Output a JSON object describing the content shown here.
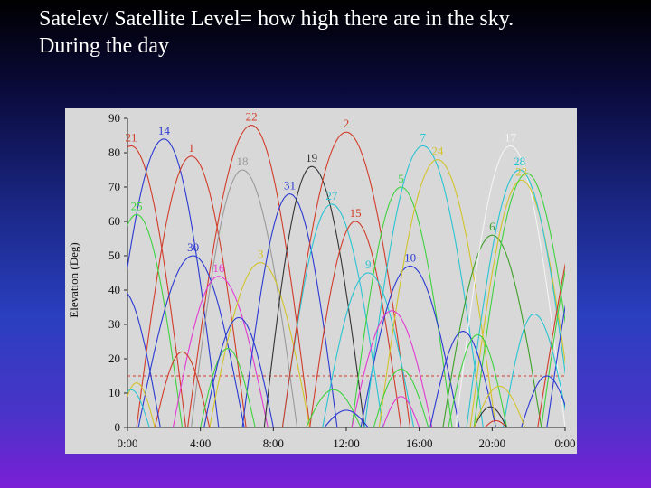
{
  "slide": {
    "title_line1": "Satelev/ Satellite Level= how high there are in the sky.",
    "title_line2": "During the day"
  },
  "chart_data": {
    "type": "line",
    "title": "",
    "xlabel": "",
    "ylabel": "Elevation (Deg)",
    "xlim": [
      0,
      24
    ],
    "ylim": [
      0,
      90
    ],
    "x_ticks": [
      "0:00",
      "4:00",
      "8:00",
      "12:00",
      "16:00",
      "20:00",
      "0:00"
    ],
    "x_tick_values": [
      0,
      4,
      8,
      12,
      16,
      20,
      24
    ],
    "y_ticks": [
      0,
      10,
      20,
      30,
      40,
      50,
      60,
      70,
      80,
      90
    ],
    "grid": false,
    "mask_line": {
      "y": 15,
      "color": "#d23c2a",
      "style": "dashed"
    },
    "x_units": "hours",
    "series": [
      {
        "name": "21",
        "color": "#d23c2a",
        "labeled": true,
        "peak_x": 0.2,
        "peak_y": 82,
        "start_x": -3,
        "end_x": 3.2
      },
      {
        "name": "14",
        "color": "#2a3ad2",
        "labeled": true,
        "peak_x": 2.0,
        "peak_y": 84,
        "start_x": -1.2,
        "end_x": 5.0
      },
      {
        "name": "1",
        "color": "#d23c2a",
        "labeled": true,
        "peak_x": 3.5,
        "peak_y": 79,
        "start_x": 0.5,
        "end_x": 6.5
      },
      {
        "name": "18",
        "color": "#9a9a9a",
        "labeled": true,
        "peak_x": 6.3,
        "peak_y": 75,
        "start_x": 3.5,
        "end_x": 9.3
      },
      {
        "name": "22",
        "color": "#d23c2a",
        "labeled": true,
        "peak_x": 6.8,
        "peak_y": 88,
        "start_x": 3.3,
        "end_x": 10.0
      },
      {
        "name": "25",
        "color": "#3fd23f",
        "labeled": true,
        "peak_x": 0.5,
        "peak_y": 62,
        "start_x": -2.0,
        "end_x": 3.0
      },
      {
        "name": "30",
        "color": "#2a3ad2",
        "labeled": true,
        "peak_x": 3.6,
        "peak_y": 50,
        "start_x": 0.6,
        "end_x": 6.4
      },
      {
        "name": "16",
        "color": "#e23ad2",
        "labeled": true,
        "peak_x": 5.0,
        "peak_y": 44,
        "start_x": 2.5,
        "end_x": 7.7
      },
      {
        "name": "3",
        "color": "#d2c42a",
        "labeled": true,
        "peak_x": 7.3,
        "peak_y": 48,
        "start_x": 4.5,
        "end_x": 10.0
      },
      {
        "name": "31",
        "color": "#2a3ad2",
        "labeled": true,
        "peak_x": 8.9,
        "peak_y": 68,
        "start_x": 6.3,
        "end_x": 11.5
      },
      {
        "name": "19",
        "color": "#333333",
        "labeled": true,
        "peak_x": 10.1,
        "peak_y": 76,
        "start_x": 7.5,
        "end_x": 13.0
      },
      {
        "name": "27",
        "color": "#2ac4d2",
        "labeled": true,
        "peak_x": 11.2,
        "peak_y": 65,
        "start_x": 8.5,
        "end_x": 14.0
      },
      {
        "name": "15",
        "color": "#d23c2a",
        "labeled": true,
        "peak_x": 12.5,
        "peak_y": 60,
        "start_x": 10.0,
        "end_x": 15.0
      },
      {
        "name": "2",
        "color": "#d23c2a",
        "labeled": true,
        "peak_x": 12.0,
        "peak_y": 86,
        "start_x": 8.5,
        "end_x": 15.5
      },
      {
        "name": "9",
        "color": "#2ac4d2",
        "labeled": true,
        "peak_x": 13.2,
        "peak_y": 45,
        "start_x": 10.7,
        "end_x": 15.7
      },
      {
        "name": "5",
        "color": "#3fd23f",
        "labeled": true,
        "peak_x": 15.0,
        "peak_y": 70,
        "start_x": 12.3,
        "end_x": 17.8
      },
      {
        "name": "10",
        "color": "#2a3ad2",
        "labeled": true,
        "peak_x": 15.5,
        "peak_y": 47,
        "start_x": 12.8,
        "end_x": 18.2
      },
      {
        "name": "7",
        "color": "#2ac4d2",
        "labeled": true,
        "peak_x": 16.2,
        "peak_y": 82,
        "start_x": 13.0,
        "end_x": 19.5
      },
      {
        "name": "24",
        "color": "#d2c42a",
        "labeled": true,
        "peak_x": 17.0,
        "peak_y": 78,
        "start_x": 13.8,
        "end_x": 20.2
      },
      {
        "name": "6",
        "color": "#3fa02a",
        "labeled": true,
        "peak_x": 20.0,
        "peak_y": 56,
        "start_x": 17.3,
        "end_x": 22.7
      },
      {
        "name": "17",
        "color": "#f4f4f4",
        "labeled": true,
        "peak_x": 21.0,
        "peak_y": 82,
        "start_x": 18.0,
        "end_x": 24.0
      },
      {
        "name": "23",
        "color": "#d2c42a",
        "labeled": true,
        "peak_x": 21.6,
        "peak_y": 72,
        "start_x": 18.8,
        "end_x": 24.5
      },
      {
        "name": "28",
        "color": "#2ac4d2",
        "labeled": true,
        "peak_x": 21.5,
        "peak_y": 75,
        "start_x": 18.6,
        "end_x": 24.4
      },
      {
        "name": "",
        "color": "#3fd23f",
        "labeled": false,
        "peak_x": 21.9,
        "peak_y": 74,
        "start_x": 19.0,
        "end_x": 24.8
      },
      {
        "name": "",
        "color": "#d23c2a",
        "labeled": false,
        "peak_x": 26.5,
        "peak_y": 85,
        "start_x": 22.5,
        "end_x": 30.5
      },
      {
        "name": "",
        "color": "#2a3ad2",
        "labeled": false,
        "peak_x": 26.0,
        "peak_y": 70,
        "start_x": 23.0,
        "end_x": 29.0
      },
      {
        "name": "",
        "color": "#3fd23f",
        "labeled": false,
        "peak_x": 25.5,
        "peak_y": 68,
        "start_x": 22.7,
        "end_x": 28.5
      },
      {
        "name": "",
        "color": "#d23c2a",
        "labeled": false,
        "peak_x": 3.0,
        "peak_y": 22,
        "start_x": 1.5,
        "end_x": 4.5
      },
      {
        "name": "",
        "color": "#3fd23f",
        "labeled": false,
        "peak_x": 5.5,
        "peak_y": 23,
        "start_x": 4.0,
        "end_x": 7.0
      },
      {
        "name": "",
        "color": "#2a3ad2",
        "labeled": false,
        "peak_x": 6.1,
        "peak_y": 32,
        "start_x": 4.2,
        "end_x": 8.0
      },
      {
        "name": "",
        "color": "#e23ad2",
        "labeled": false,
        "peak_x": 14.5,
        "peak_y": 34,
        "start_x": 12.3,
        "end_x": 16.7
      },
      {
        "name": "",
        "color": "#2a3ad2",
        "labeled": false,
        "peak_x": 18.4,
        "peak_y": 28,
        "start_x": 16.6,
        "end_x": 20.2
      },
      {
        "name": "",
        "color": "#3fd23f",
        "labeled": false,
        "peak_x": 19.2,
        "peak_y": 27,
        "start_x": 17.6,
        "end_x": 20.8
      },
      {
        "name": "",
        "color": "#2ac4d2",
        "labeled": false,
        "peak_x": 22.3,
        "peak_y": 33,
        "start_x": 20.6,
        "end_x": 24.2
      },
      {
        "name": "",
        "color": "#3fd23f",
        "labeled": false,
        "peak_x": 11.3,
        "peak_y": 11,
        "start_x": 9.8,
        "end_x": 12.8
      },
      {
        "name": "",
        "color": "#2a3ad2",
        "labeled": false,
        "peak_x": 12.0,
        "peak_y": 5,
        "start_x": 10.8,
        "end_x": 13.2
      },
      {
        "name": "",
        "color": "#3fd23f",
        "labeled": false,
        "peak_x": 15.0,
        "peak_y": 17,
        "start_x": 13.5,
        "end_x": 16.5
      },
      {
        "name": "",
        "color": "#e23ad2",
        "labeled": false,
        "peak_x": 15.0,
        "peak_y": 9,
        "start_x": 14.0,
        "end_x": 16.0
      },
      {
        "name": "",
        "color": "#d23c2a",
        "labeled": false,
        "peak_x": 20.2,
        "peak_y": 2,
        "start_x": 19.6,
        "end_x": 20.8
      },
      {
        "name": "",
        "color": "#333333",
        "labeled": false,
        "peak_x": 19.9,
        "peak_y": 6,
        "start_x": 19.0,
        "end_x": 20.8
      },
      {
        "name": "",
        "color": "#2a3ad2",
        "labeled": false,
        "peak_x": 23.0,
        "peak_y": 15,
        "start_x": 21.6,
        "end_x": 24.4
      },
      {
        "name": "",
        "color": "#d2c42a",
        "labeled": false,
        "peak_x": 0.5,
        "peak_y": 13,
        "start_x": -0.5,
        "end_x": 1.5
      },
      {
        "name": "",
        "color": "#2ac4d2",
        "labeled": false,
        "peak_x": 0.2,
        "peak_y": 11,
        "start_x": -0.8,
        "end_x": 1.2
      },
      {
        "name": "",
        "color": "#2a3ad2",
        "labeled": false,
        "peak_x": -0.3,
        "peak_y": 40,
        "start_x": -3.0,
        "end_x": 1.8
      },
      {
        "name": "",
        "color": "#d2c42a",
        "labeled": false,
        "peak_x": 20.4,
        "peak_y": 12,
        "start_x": 19.0,
        "end_x": 21.8
      }
    ]
  }
}
